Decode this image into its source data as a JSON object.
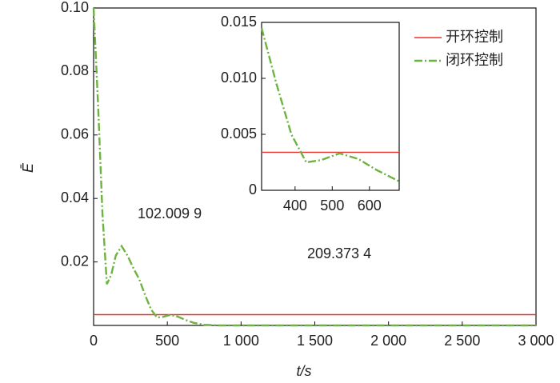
{
  "chart_data": [
    {
      "type": "line",
      "x_label": "t/s",
      "y_label": "Ē",
      "x": [
        0,
        30,
        60,
        90,
        120,
        150,
        190,
        230,
        270,
        310,
        350,
        390,
        430,
        470,
        520,
        570,
        620,
        680,
        750,
        850,
        1000,
        1500,
        2000,
        2500,
        3000
      ],
      "series": [
        {
          "name": "开环控制",
          "color": "#e8322d",
          "values": [
            0.0034,
            0.0034,
            0.0034,
            0.0034,
            0.0034,
            0.0034,
            0.0034,
            0.0034,
            0.0034,
            0.0034,
            0.0034,
            0.0034,
            0.0034,
            0.0034,
            0.0034,
            0.0034,
            0.0034,
            0.0034,
            0.0034,
            0.0034,
            0.0034,
            0.0034,
            0.0034,
            0.0034,
            0.0034
          ]
        },
        {
          "name": "闭环控制",
          "color": "#6db33f",
          "values": [
            0.1,
            0.07,
            0.035,
            0.013,
            0.016,
            0.022,
            0.025,
            0.022,
            0.018,
            0.0145,
            0.0095,
            0.005,
            0.0025,
            0.0027,
            0.0033,
            0.0028,
            0.0018,
            0.0008,
            0.0002,
            0,
            0,
            0,
            0,
            0,
            0
          ]
        }
      ],
      "xlim": [
        0,
        3000
      ],
      "xticks": [
        0,
        500,
        {
          "value": 1000,
          "label": "1 000"
        },
        {
          "value": 1500,
          "label": "1 500"
        },
        {
          "value": 2000,
          "label": "2 000"
        },
        {
          "value": 2500,
          "label": "2 500"
        },
        {
          "value": 3000,
          "label": "3 000"
        }
      ],
      "ylim": [
        0,
        0.1
      ],
      "yticks": [
        0.02,
        0.04,
        0.06,
        0.08,
        {
          "value": 0.1,
          "label": "0.10"
        }
      ],
      "annotations": [
        {
          "text": "102.009 9"
        },
        {
          "text": "209.373 4"
        }
      ],
      "legend": "upper right"
    },
    {
      "type": "line",
      "x": [
        310,
        350,
        390,
        430,
        470,
        520,
        570,
        620,
        680
      ],
      "series": [
        {
          "name": "开环控制",
          "color": "#e8322d",
          "values": [
            0.0034,
            0.0034,
            0.0034,
            0.0034,
            0.0034,
            0.0034,
            0.0034,
            0.0034,
            0.0034
          ]
        },
        {
          "name": "闭环控制",
          "color": "#6db33f",
          "values": [
            0.0145,
            0.0095,
            0.005,
            0.0025,
            0.0027,
            0.0033,
            0.0028,
            0.0018,
            0.0008
          ]
        }
      ],
      "xlim": [
        310,
        680
      ],
      "xticks": [
        400,
        500,
        600
      ],
      "ylim": [
        0,
        0.015
      ],
      "yticks": [
        0,
        0.005,
        {
          "value": 0.01,
          "label": "0.010"
        },
        0.015
      ]
    }
  ]
}
